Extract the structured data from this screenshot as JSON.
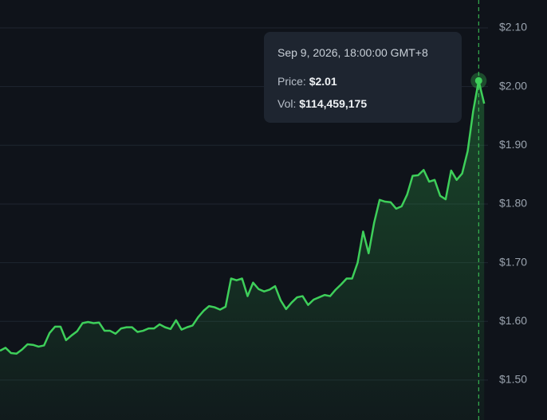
{
  "chart_data": {
    "type": "line",
    "series": [
      {
        "name": null,
        "color": "#3ecf5a",
        "values": [
          1.55,
          1.555,
          1.546,
          1.545,
          1.552,
          1.561,
          1.56,
          1.557,
          1.559,
          1.58,
          1.591,
          1.591,
          1.568,
          1.576,
          1.583,
          1.597,
          1.599,
          1.597,
          1.598,
          1.584,
          1.584,
          1.579,
          1.588,
          1.59,
          1.59,
          1.582,
          1.584,
          1.588,
          1.588,
          1.595,
          1.59,
          1.587,
          1.602,
          1.586,
          1.59,
          1.593,
          1.607,
          1.618,
          1.626,
          1.624,
          1.62,
          1.625,
          1.673,
          1.67,
          1.673,
          1.643,
          1.666,
          1.655,
          1.651,
          1.654,
          1.66,
          1.636,
          1.621,
          1.632,
          1.641,
          1.643,
          1.628,
          1.637,
          1.641,
          1.645,
          1.643,
          1.654,
          1.663,
          1.673,
          1.673,
          1.7,
          1.753,
          1.716,
          1.768,
          1.807,
          1.804,
          1.803,
          1.792,
          1.796,
          1.816,
          1.848,
          1.849,
          1.858,
          1.838,
          1.841,
          1.814,
          1.808,
          1.857,
          1.841,
          1.852,
          1.89,
          1.958,
          2.01,
          1.971
        ]
      }
    ],
    "ylim": [
      1.432,
      2.1475
    ],
    "yticks": [
      {
        "value": 1.5,
        "label": "$1.50"
      },
      {
        "value": 1.6,
        "label": "$1.60"
      },
      {
        "value": 1.7,
        "label": "$1.70"
      },
      {
        "value": 1.8,
        "label": "$1.80"
      },
      {
        "value": 1.9,
        "label": "$1.90"
      },
      {
        "value": 2.0,
        "label": "$2.00"
      },
      {
        "value": 2.1,
        "label": "$2.10"
      }
    ],
    "grid": true,
    "tooltip": {
      "date": "Sep 9, 2026, 18:00:00 GMT+8",
      "price_label": "Price:",
      "price": "$2.01",
      "vol_label": "Vol:",
      "vol": "$114,459,175"
    }
  }
}
